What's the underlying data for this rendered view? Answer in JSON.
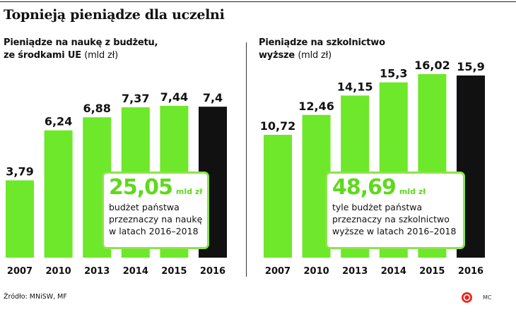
{
  "title": "Topnieją pieniądze dla uczelni",
  "colors": {
    "bar": "#6ee82a",
    "highlight_bar": "#111111",
    "accent": "#5fd91e"
  },
  "chart_data": [
    {
      "type": "bar",
      "title_line1": "Pieniądze na naukę z budżetu,",
      "title_line2": "ze środkami UE",
      "unit": "(mld zł)",
      "categories": [
        "2007",
        "2010",
        "2013",
        "2014",
        "2015",
        "2016"
      ],
      "values": [
        3.79,
        6.24,
        6.88,
        7.37,
        7.44,
        7.4
      ],
      "value_labels": [
        "3,79",
        "6,24",
        "6,88",
        "7,37",
        "7,44",
        "7,4"
      ],
      "highlight_index": 5,
      "ylim": [
        0,
        7.44
      ],
      "callout": {
        "value": "25,05",
        "unit": "mld zł",
        "lines": [
          "budżet państwa",
          "przeznaczy na naukę",
          "w latach 2016–2018"
        ]
      }
    },
    {
      "type": "bar",
      "title_line1": "Pieniądze na szkolnictwo",
      "title_line2": "wyższe",
      "unit": "(mld zł)",
      "categories": [
        "2007",
        "2010",
        "2013",
        "2014",
        "2015",
        "2016"
      ],
      "values": [
        10.72,
        12.46,
        14.15,
        15.3,
        16.02,
        15.9
      ],
      "value_labels": [
        "10,72",
        "12,46",
        "14,15",
        "15,3",
        "16,02",
        "15,9"
      ],
      "highlight_index": 5,
      "ylim": [
        0,
        16.02
      ],
      "callout": {
        "value": "48,69",
        "unit": "mld zł",
        "lines": [
          "tyle budżet państwa",
          "przeznaczy na szkolnictwo",
          "wyższe w latach 2016–2018"
        ]
      }
    }
  ],
  "source": "Źródło: MNiSW, MF",
  "credit": "MC"
}
